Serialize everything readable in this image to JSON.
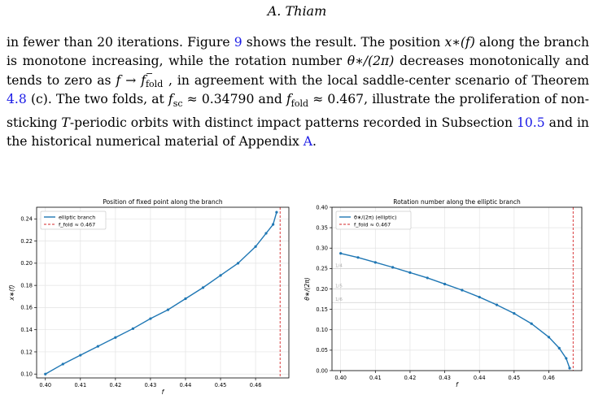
{
  "header": {
    "author": "A. Thiam"
  },
  "paragraph": {
    "s1": "in fewer than 20 iterations. Figure ",
    "fig_ref": "9",
    "s2": " shows the result. The position ",
    "s3": " along the branch is monotone increasing, while the rotation number ",
    "s4": " decreases monotonically and tends to zero as ",
    "s5": ", in agreement with the local saddle-center scenario of Theorem ",
    "thm_ref": "4.8",
    "s6": " (c). The two folds, at ",
    "s7": " and ",
    "s8": ", illustrate the proliferation of non-sticking ",
    "s9": "-periodic orbits with distinct impact patterns recorded in Subsection ",
    "sub_ref": "10.5",
    "s10": " and in the historical numerical material of Appendix ",
    "app_ref": "A",
    "s11": ".",
    "m_xstar": "x∗(f)",
    "m_theta": "θ∗/(2π)",
    "m_limit": "f → f",
    "m_limit_sup": "−",
    "m_limit_sub": "fold",
    "m_fsc": "f",
    "m_fsc_sub": "sc",
    "m_fsc_val": " ≈ 0.34790",
    "m_ffold": "f",
    "m_ffold_sub": "fold",
    "m_ffold_val": " ≈ 0.467",
    "m_T": "T"
  },
  "chart_data": [
    {
      "type": "line",
      "title": "Position of fixed point along the branch",
      "xlabel": "f",
      "ylabel": "x∗(f)",
      "xlim": [
        0.3975,
        0.4695
      ],
      "ylim": [
        0.0965,
        0.2505
      ],
      "xticks": [
        0.4,
        0.41,
        0.42,
        0.43,
        0.44,
        0.45,
        0.46
      ],
      "xticklabels": [
        "0.40",
        "0.41",
        "0.42",
        "0.43",
        "0.44",
        "0.45",
        "0.46"
      ],
      "yticks": [
        0.1,
        0.12,
        0.14,
        0.16,
        0.18,
        0.2,
        0.22,
        0.24
      ],
      "yticklabels": [
        "0.10",
        "0.12",
        "0.14",
        "0.16",
        "0.18",
        "0.20",
        "0.22",
        "0.24"
      ],
      "grid": true,
      "legend_position": "top-left",
      "legend": [
        "elliptic branch",
        "f_fold ≈ 0.467"
      ],
      "vline": 0.467,
      "series": [
        {
          "name": "elliptic branch",
          "color": "#1f77b4",
          "x": [
            0.4,
            0.405,
            0.41,
            0.415,
            0.42,
            0.425,
            0.43,
            0.435,
            0.44,
            0.445,
            0.45,
            0.455,
            0.46,
            0.463,
            0.465,
            0.466
          ],
          "y": [
            0.1,
            0.109,
            0.117,
            0.125,
            0.133,
            0.141,
            0.15,
            0.158,
            0.168,
            0.178,
            0.189,
            0.2,
            0.215,
            0.227,
            0.235,
            0.246
          ]
        }
      ]
    },
    {
      "type": "line",
      "title": "Rotation number along the elliptic branch",
      "xlabel": "f",
      "ylabel": "θ∗/(2π)",
      "xlim": [
        0.3975,
        0.4695
      ],
      "ylim": [
        0.0,
        0.4
      ],
      "xticks": [
        0.4,
        0.41,
        0.42,
        0.43,
        0.44,
        0.45,
        0.46
      ],
      "xticklabels": [
        "0.40",
        "0.41",
        "0.42",
        "0.43",
        "0.44",
        "0.45",
        "0.46"
      ],
      "yticks": [
        0.0,
        0.05,
        0.1,
        0.15,
        0.2,
        0.25,
        0.3,
        0.35,
        0.4
      ],
      "yticklabels": [
        "0.00",
        "0.05",
        "0.10",
        "0.15",
        "0.20",
        "0.25",
        "0.30",
        "0.35",
        "0.40"
      ],
      "grid": true,
      "legend_position": "top-left",
      "legend": [
        "θ∗/(2π) (elliptic)",
        "f_fold ≈ 0.467"
      ],
      "vline": 0.467,
      "hlines": [
        {
          "y": 0.25,
          "label": "1/4"
        },
        {
          "y": 0.2,
          "label": "1/5"
        },
        {
          "y": 0.1667,
          "label": "1/6"
        }
      ],
      "series": [
        {
          "name": "θ∗/(2π) (elliptic)",
          "color": "#1f77b4",
          "x": [
            0.4,
            0.405,
            0.41,
            0.415,
            0.42,
            0.425,
            0.43,
            0.435,
            0.44,
            0.445,
            0.45,
            0.455,
            0.46,
            0.463,
            0.465,
            0.466
          ],
          "y": [
            0.287,
            0.277,
            0.265,
            0.253,
            0.24,
            0.227,
            0.212,
            0.197,
            0.18,
            0.161,
            0.14,
            0.115,
            0.082,
            0.055,
            0.03,
            0.006
          ]
        }
      ]
    }
  ]
}
